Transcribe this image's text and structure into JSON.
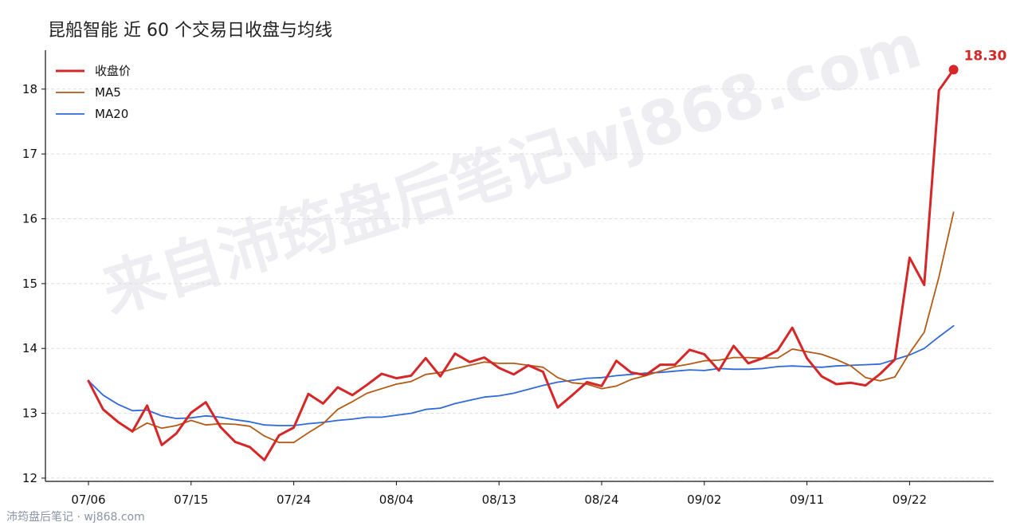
{
  "title": "昆船智能 近 60 个交易日收盘与均线",
  "watermark": {
    "center": "来自沛筠盘后笔记wj868.com",
    "corner": "沛筠盘后笔记 · wj868.com"
  },
  "chart_data": {
    "type": "line",
    "title": "昆船智能 近 60 个交易日收盘与均线",
    "xlabel": "",
    "ylabel": "",
    "ylim": [
      11.95,
      18.6
    ],
    "yticks": [
      12,
      13,
      14,
      15,
      16,
      17,
      18
    ],
    "xtick_labels": [
      "07/06",
      "07/15",
      "07/24",
      "08/04",
      "08/13",
      "08/24",
      "09/02",
      "09/11",
      "09/22"
    ],
    "xtick_index": [
      0,
      7,
      14,
      21,
      28,
      35,
      42,
      49,
      56
    ],
    "grid": "horizontal dashed",
    "legend": "top-left",
    "last_value_label": "18.30",
    "series": [
      {
        "name": "收盘价",
        "color": "#d62728",
        "width": 3,
        "values": [
          13.5,
          13.06,
          12.87,
          12.72,
          13.12,
          12.51,
          12.69,
          13.01,
          13.17,
          12.79,
          12.56,
          12.48,
          12.28,
          12.66,
          12.78,
          13.3,
          13.15,
          13.4,
          13.28,
          13.44,
          13.61,
          13.54,
          13.58,
          13.85,
          13.57,
          13.92,
          13.79,
          13.86,
          13.7,
          13.6,
          13.74,
          13.64,
          13.09,
          13.28,
          13.48,
          13.42,
          13.81,
          13.63,
          13.59,
          13.75,
          13.75,
          13.98,
          13.91,
          13.66,
          14.04,
          13.77,
          13.85,
          13.97,
          14.32,
          13.85,
          13.57,
          13.45,
          13.47,
          13.43,
          13.61,
          13.83,
          15.4,
          14.98,
          17.98,
          18.3
        ]
      },
      {
        "name": "MA5",
        "color": "#b35a14",
        "width": 1.8,
        "values": [
          13.5,
          13.06,
          12.87,
          12.72,
          12.85,
          12.77,
          12.81,
          12.89,
          12.82,
          12.84,
          12.83,
          12.8,
          12.65,
          12.55,
          12.55,
          12.7,
          12.84,
          13.06,
          13.18,
          13.31,
          13.38,
          13.45,
          13.49,
          13.6,
          13.63,
          13.69,
          13.74,
          13.79,
          13.77,
          13.77,
          13.74,
          13.71,
          13.55,
          13.47,
          13.45,
          13.38,
          13.42,
          13.52,
          13.58,
          13.65,
          13.72,
          13.76,
          13.81,
          13.82,
          13.86,
          13.86,
          13.85,
          13.85,
          13.99,
          13.95,
          13.91,
          13.83,
          13.73,
          13.55,
          13.5,
          13.56,
          13.93,
          14.25,
          15.1,
          16.1
        ]
      },
      {
        "name": "MA20",
        "color": "#2f6ad8",
        "width": 1.8,
        "values": [
          13.5,
          13.28,
          13.14,
          13.04,
          13.05,
          12.96,
          12.92,
          12.93,
          12.96,
          12.94,
          12.9,
          12.87,
          12.82,
          12.81,
          12.81,
          12.84,
          12.86,
          12.89,
          12.91,
          12.94,
          12.94,
          12.97,
          13.0,
          13.06,
          13.08,
          13.15,
          13.2,
          13.25,
          13.27,
          13.31,
          13.37,
          13.43,
          13.48,
          13.51,
          13.54,
          13.55,
          13.58,
          13.6,
          13.62,
          13.63,
          13.65,
          13.67,
          13.66,
          13.69,
          13.68,
          13.68,
          13.69,
          13.72,
          13.73,
          13.72,
          13.71,
          13.73,
          13.74,
          13.75,
          13.76,
          13.83,
          13.9,
          14.0,
          14.18,
          14.35
        ]
      }
    ]
  }
}
